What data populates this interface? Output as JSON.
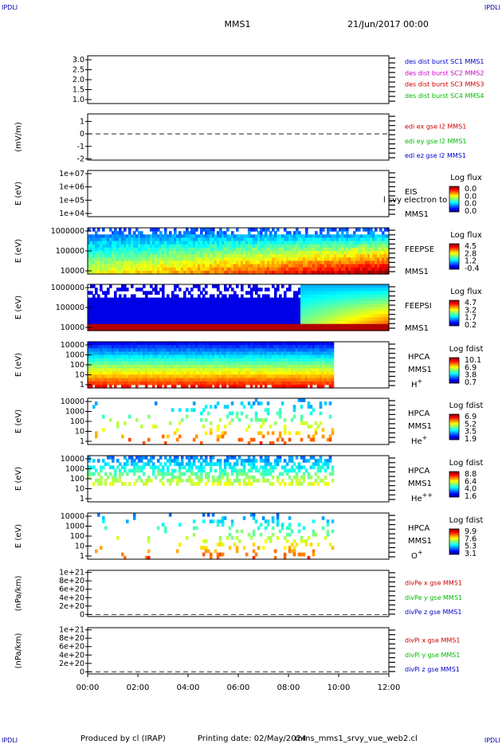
{
  "corner_label": "IPDLI",
  "header": {
    "spacecraft": "MMS1",
    "datetime": "21/Jun/2017 00:00"
  },
  "footer": {
    "produced_by": "Produced by cl (IRAP)",
    "printing_date": "Printing date: 02/May/2024",
    "script_name": "mms_mms1_srvy_vue_web2.cl"
  },
  "chart_data": {
    "type": "multi-panel time series (line plots and spectrograms)",
    "x_axis": {
      "ticks": [
        "00:00",
        "02:00",
        "04:00",
        "06:00",
        "08:00",
        "10:00",
        "12:00"
      ],
      "range_hours": [
        0,
        12
      ]
    },
    "panels": [
      {
        "type": "line",
        "ylabel": "",
        "yticks": [
          "3.0",
          "2.5",
          "2.0",
          "1.5",
          "1.0"
        ],
        "ylim": [
          0.8,
          3.2
        ],
        "series": [
          {
            "name": "des dist burst SC1 MMS1",
            "color": "#0000cc",
            "values": []
          },
          {
            "name": "des dist burst SC2 MMS2",
            "color": "#cc00cc",
            "values": []
          },
          {
            "name": "des dist burst SC3 MMS3",
            "color": "#cc0000",
            "values": []
          },
          {
            "name": "des dist burst SC4 MMS4",
            "color": "#00bb00",
            "values": []
          }
        ]
      },
      {
        "type": "line",
        "ylabel": "(mV/m)",
        "yticks": [
          "1",
          "0",
          "-1",
          "-2"
        ],
        "ylim": [
          -2.1,
          1.6
        ],
        "zero_line": true,
        "series": [
          {
            "name": "edi ex gse l2 MMS1",
            "color": "#cc0000",
            "values": []
          },
          {
            "name": "edi ey gse l2 MMS1",
            "color": "#00bb00",
            "values": []
          },
          {
            "name": "edi ez gse l2 MMS1",
            "color": "#0000cc",
            "values": []
          }
        ]
      },
      {
        "type": "heatmap",
        "ylabel": "E (eV)",
        "yticks": [
          "1e+07",
          "1e+06",
          "1e+05",
          "1e+04"
        ],
        "instrument": [
          "EIS",
          "MMS1"
        ],
        "overlay_text": "l svy electron to",
        "colorbar": {
          "title": "Log flux",
          "ticks": [
            "0.0",
            "0.0",
            "0.0",
            "0.0"
          ]
        },
        "data_coverage_hours": []
      },
      {
        "type": "heatmap",
        "ylabel": "E (eV)",
        "yticks": [
          "1000000",
          "100000",
          "10000"
        ],
        "instrument": [
          "FEEPSE",
          "MMS1"
        ],
        "colorbar": {
          "title": "Log flux",
          "ticks": [
            "4.5",
            "2.8",
            "1.2",
            "-0.4"
          ]
        },
        "data_coverage_hours": [
          0,
          12
        ]
      },
      {
        "type": "heatmap",
        "ylabel": "E (eV)",
        "yticks": [
          "1000000",
          "100000",
          "10000"
        ],
        "instrument": [
          "FEEPSI",
          "MMS1"
        ],
        "colorbar": {
          "title": "Log flux",
          "ticks": [
            "4.7",
            "3.2",
            "1.7",
            "0.2"
          ]
        },
        "data_coverage_hours": [
          0,
          12
        ]
      },
      {
        "type": "heatmap",
        "ylabel": "E (eV)",
        "yticks": [
          "10000",
          "1000",
          "100",
          "10",
          "1"
        ],
        "instrument": [
          "HPCA",
          "MMS1",
          "H+"
        ],
        "colorbar": {
          "title": "Log fdist",
          "ticks": [
            "10.1",
            "6.9",
            "3.8",
            "0.7"
          ]
        },
        "data_coverage_hours": [
          0,
          9.8
        ]
      },
      {
        "type": "heatmap",
        "ylabel": "E (eV)",
        "yticks": [
          "10000",
          "1000",
          "100",
          "10",
          "1"
        ],
        "instrument": [
          "HPCA",
          "MMS1",
          "He+"
        ],
        "colorbar": {
          "title": "Log fdist",
          "ticks": [
            "6.9",
            "5.2",
            "3.5",
            "1.9"
          ]
        },
        "data_coverage_hours": [
          0,
          9.8
        ]
      },
      {
        "type": "heatmap",
        "ylabel": "E (eV)",
        "yticks": [
          "10000",
          "1000",
          "100",
          "10",
          "1"
        ],
        "instrument": [
          "HPCA",
          "MMS1",
          "He++"
        ],
        "colorbar": {
          "title": "Log fdist",
          "ticks": [
            "8.8",
            "6.4",
            "4.0",
            "1.6"
          ]
        },
        "data_coverage_hours": [
          0,
          9.8
        ]
      },
      {
        "type": "heatmap",
        "ylabel": "E (eV)",
        "yticks": [
          "10000",
          "1000",
          "100",
          "10",
          "1"
        ],
        "instrument": [
          "HPCA",
          "MMS1",
          "O+"
        ],
        "colorbar": {
          "title": "Log fdist",
          "ticks": [
            "9.9",
            "7.6",
            "5.3",
            "3.1"
          ]
        },
        "data_coverage_hours": [
          0,
          9.8
        ]
      },
      {
        "type": "line",
        "ylabel": "(nPa/km)",
        "yticks": [
          "1e+21",
          "8e+20",
          "6e+20",
          "4e+20",
          "2e+20",
          "0"
        ],
        "ylim": [
          -5e+19,
          1.05e+21
        ],
        "zero_line": true,
        "series": [
          {
            "name": "divPe x gse MMS1",
            "color": "#cc0000",
            "values": []
          },
          {
            "name": "divPe y gse MMS1",
            "color": "#00bb00",
            "values": []
          },
          {
            "name": "divPe z gse MMS1",
            "color": "#0000cc",
            "values": []
          }
        ]
      },
      {
        "type": "line",
        "ylabel": "(nPa/km)",
        "yticks": [
          "1e+21",
          "8e+20",
          "6e+20",
          "4e+20",
          "2e+20",
          "0"
        ],
        "ylim": [
          -5e+19,
          1.05e+21
        ],
        "zero_line": true,
        "series": [
          {
            "name": "divPi x gse MMS1",
            "color": "#cc0000",
            "values": []
          },
          {
            "name": "divPi y gse MMS1",
            "color": "#00bb00",
            "values": []
          },
          {
            "name": "divPi z gse MMS1",
            "color": "#0000cc",
            "values": []
          }
        ]
      }
    ]
  }
}
